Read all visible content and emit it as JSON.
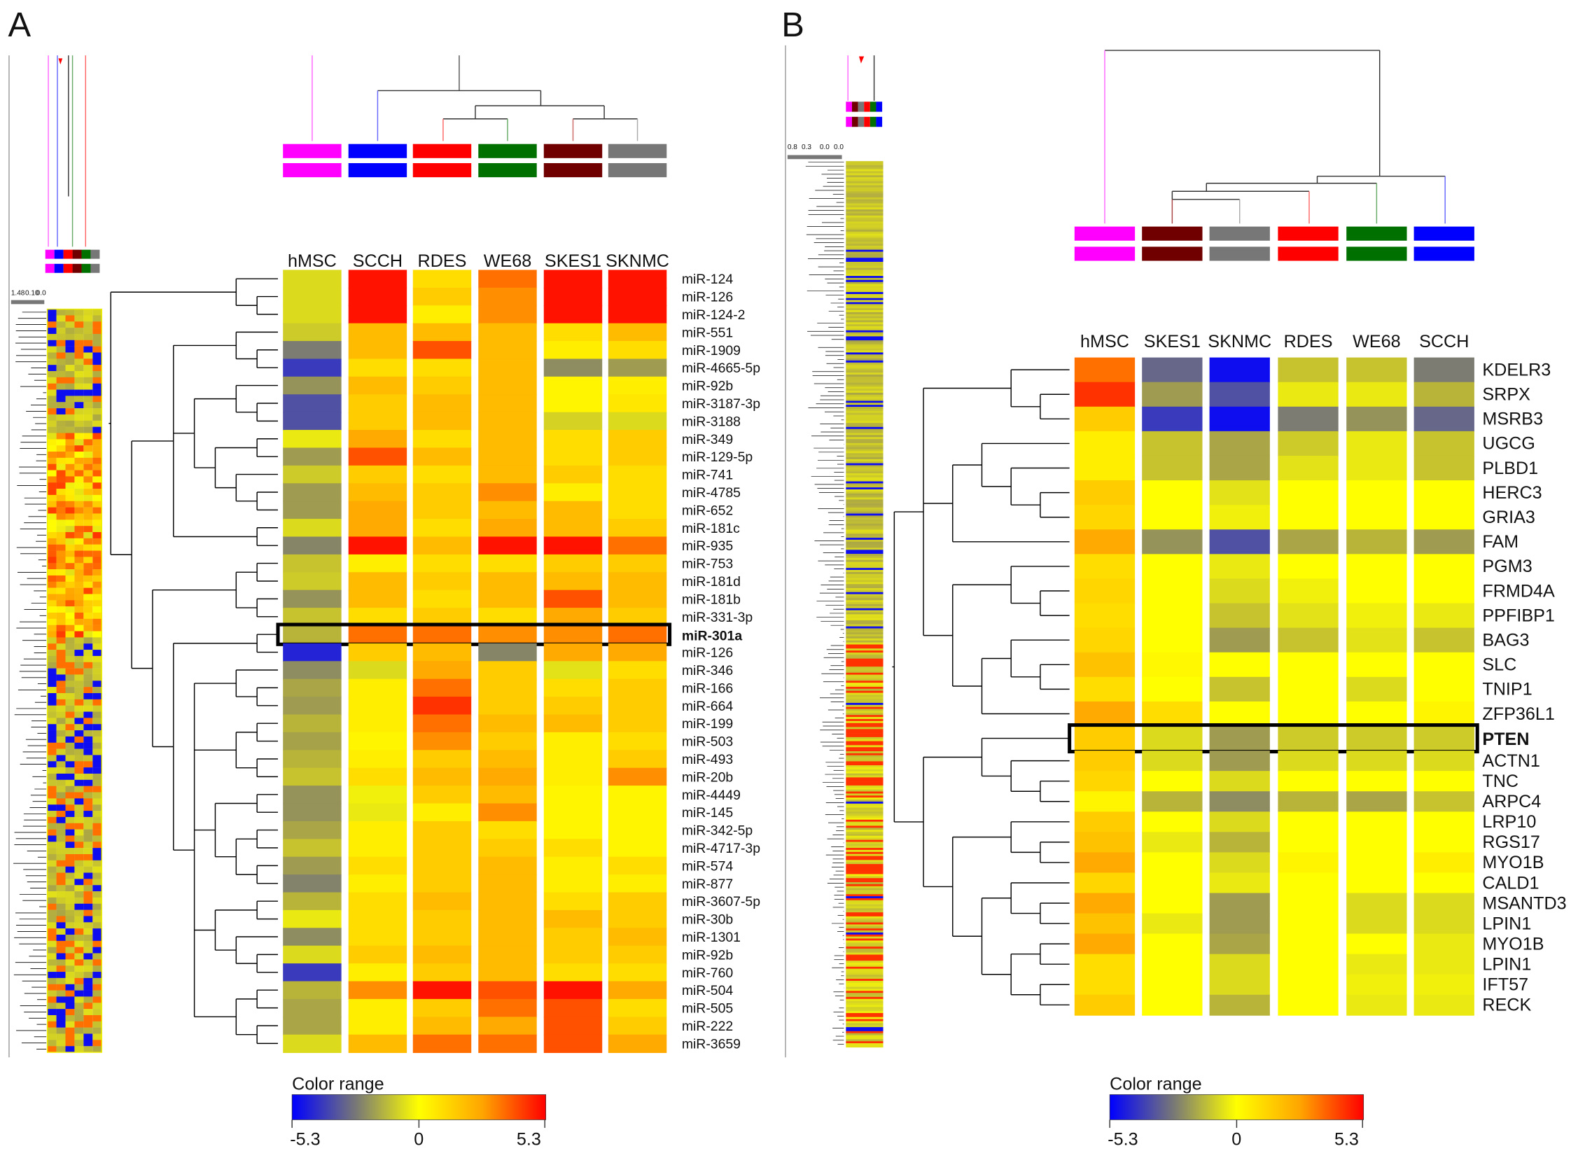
{
  "colors": {
    "magenta": "#ff00ff",
    "blue": "#0000ff",
    "red": "#ff0000",
    "green": "#007000",
    "darkred": "#700000",
    "gray": "#777777",
    "yellow": "#ffff00"
  },
  "legend": {
    "title": "Color range",
    "min_label": "-5.3",
    "mid_label": "0",
    "max_label": "5.3",
    "min": -5.3,
    "max": 5.3
  },
  "chart_data": [
    {
      "type": "heatmap",
      "panel": "A",
      "title": "",
      "mini_scale_labels": [
        "1.48",
        "0.10",
        "0.0"
      ],
      "columns": [
        "hMSC",
        "SCCH",
        "RDES",
        "WE68",
        "SKES1",
        "SKNMC"
      ],
      "column_group_colors": [
        "magenta",
        "blue",
        "red",
        "green",
        "darkred",
        "gray"
      ],
      "highlight_row": "miR-301a",
      "rows": [
        "miR-124",
        "miR-126",
        "miR-124-2",
        "miR-551",
        "miR-1909",
        "miR-4665-5p",
        "miR-92b",
        "miR-3187-3p",
        "miR-3188",
        "miR-349",
        "miR-129-5p",
        "miR-741",
        "miR-4785",
        "miR-652",
        "miR-181c",
        "miR-935",
        "miR-753",
        "miR-181d",
        "miR-181b",
        "miR-331-3p",
        "miR-301a",
        "miR-126",
        "miR-346",
        "miR-166",
        "miR-664",
        "miR-199",
        "miR-503",
        "miR-493",
        "miR-20b",
        "miR-4449",
        "miR-145",
        "miR-342-5p",
        "miR-4717-3p",
        "miR-574",
        "miR-877",
        "miR-3607-5p",
        "miR-30b",
        "miR-1301",
        "miR-92b",
        "miR-760",
        "miR-504",
        "miR-505",
        "miR-222",
        "miR-3659"
      ],
      "values": [
        [
          -0.5,
          5,
          1,
          3.5,
          5,
          5
        ],
        [
          -0.5,
          5,
          1.5,
          3,
          5,
          5
        ],
        [
          -0.5,
          5,
          0.5,
          3,
          5,
          5
        ],
        [
          -0.7,
          2,
          2,
          2,
          1,
          2
        ],
        [
          -2.5,
          2,
          4,
          2,
          0.5,
          1
        ],
        [
          -4,
          1,
          1,
          2,
          -2,
          -1.5
        ],
        [
          -1.8,
          2,
          1.5,
          2,
          0.3,
          0.5
        ],
        [
          -3.5,
          1.5,
          2,
          2,
          0.3,
          0.7
        ],
        [
          -3.5,
          1.5,
          2,
          2,
          -0.6,
          -0.5
        ],
        [
          -0.3,
          2.5,
          1,
          2,
          1,
          1.5
        ],
        [
          -1.5,
          4,
          2,
          2,
          1,
          1.5
        ],
        [
          -0.7,
          1.5,
          1,
          2,
          1.5,
          1
        ],
        [
          -1.5,
          2,
          1.5,
          3,
          0.5,
          1
        ],
        [
          -1.5,
          2.5,
          1.5,
          2,
          2,
          1
        ],
        [
          -0.5,
          2.5,
          1,
          2.5,
          2,
          1.5
        ],
        [
          -2.2,
          5,
          2,
          5,
          5,
          3.5
        ],
        [
          -0.8,
          0.5,
          1,
          1,
          1.5,
          1.5
        ],
        [
          -0.7,
          2,
          1.5,
          2,
          2,
          2
        ],
        [
          -1.8,
          2,
          1,
          2,
          4,
          2
        ],
        [
          -0.8,
          1,
          1.5,
          1,
          2.5,
          1.5
        ],
        [
          -1,
          3.5,
          3.5,
          3,
          3,
          3.5
        ],
        [
          -4.5,
          1.5,
          2,
          -2.2,
          2.5,
          2.5
        ],
        [
          -2,
          -0.5,
          2.5,
          1.5,
          -0.4,
          1
        ],
        [
          -1.2,
          0.5,
          3.5,
          1.5,
          1,
          1.5
        ],
        [
          -1.5,
          0.5,
          4.5,
          1.5,
          1.5,
          1.5
        ],
        [
          -1,
          0.5,
          3.5,
          2,
          2,
          1.5
        ],
        [
          -1.3,
          0.3,
          3,
          1.5,
          0.5,
          1
        ],
        [
          -1,
          0.5,
          1.5,
          2,
          0.5,
          1.5
        ],
        [
          -0.8,
          1,
          2,
          2.5,
          0.5,
          3
        ],
        [
          -1.8,
          -0.2,
          1.5,
          2,
          0.3,
          0.3
        ],
        [
          -1.8,
          -0.3,
          0.5,
          3,
          0.3,
          0.3
        ],
        [
          -1.2,
          0.5,
          1.5,
          1,
          0.3,
          0.3
        ],
        [
          -0.8,
          0.5,
          1.5,
          1.5,
          1,
          0.3
        ],
        [
          -1.5,
          1,
          1.5,
          2,
          0.5,
          1
        ],
        [
          -2.3,
          0.5,
          1.5,
          2,
          0.5,
          0.5
        ],
        [
          -1,
          1,
          2,
          2,
          1,
          1.5
        ],
        [
          -0.3,
          1,
          1.5,
          2,
          2,
          1.5
        ],
        [
          -2,
          1,
          1.5,
          2,
          1.5,
          2
        ],
        [
          -0.5,
          1.5,
          2,
          2,
          1.5,
          1.5
        ],
        [
          -4,
          0.5,
          1.5,
          2,
          1,
          1
        ],
        [
          -1,
          3,
          5,
          4,
          5,
          2.5
        ],
        [
          -1.2,
          0.5,
          1.5,
          3.5,
          4,
          1
        ],
        [
          -1.2,
          0.5,
          2,
          2.5,
          4,
          1.5
        ],
        [
          -0.5,
          2,
          3.5,
          3.5,
          4,
          2.5
        ]
      ],
      "zlim": [
        -5.3,
        5.3
      ]
    },
    {
      "type": "heatmap",
      "panel": "B",
      "title": "",
      "mini_scale_labels": [
        "0.8",
        "0.3",
        "0.0",
        "0.0"
      ],
      "columns": [
        "hMSC",
        "SKES1",
        "SKNMC",
        "RDES",
        "WE68",
        "SCCH"
      ],
      "column_group_colors": [
        "magenta",
        "darkred",
        "gray",
        "red",
        "green",
        "blue"
      ],
      "highlight_row": "PTEN",
      "rows": [
        "KDELR3",
        "SRPX",
        "MSRB3",
        "UGCG",
        "PLBD1",
        "HERC3",
        "GRIA3",
        "FAM",
        "PGM3",
        "FRMD4A",
        "PPFIBP1",
        "BAG3",
        "SLC",
        "TNIP1",
        "ZFP36L1",
        "PTEN",
        "ACTN1",
        "TNC",
        "ARPC4",
        "LRP10",
        "RGS17",
        "MYO1B",
        "CALD1",
        "MSANTD3",
        "LPIN1",
        "MYO1B",
        "LPIN1",
        "IFT57",
        "RECK"
      ],
      "values": [
        [
          3.5,
          -3,
          -5,
          -0.8,
          -0.8,
          -2.5
        ],
        [
          4.5,
          -1.5,
          -3.5,
          -0.3,
          -0.3,
          -1
        ],
        [
          1.5,
          -4,
          -5,
          -2.5,
          -1.8,
          -3
        ],
        [
          0.5,
          -0.8,
          -1.2,
          -0.7,
          -0.3,
          -0.8
        ],
        [
          0.5,
          -0.8,
          -1.2,
          -0.4,
          -0.3,
          -0.8
        ],
        [
          1.5,
          0,
          -0.4,
          0,
          0,
          0
        ],
        [
          1.2,
          0,
          -0.2,
          0,
          0,
          0
        ],
        [
          2.5,
          -1.8,
          -3.5,
          -1.2,
          -1,
          -1.5
        ],
        [
          1,
          0,
          -0.3,
          0,
          0,
          0
        ],
        [
          1.2,
          0,
          -0.5,
          -0.2,
          0,
          0
        ],
        [
          1,
          0,
          -0.8,
          -0.4,
          -0.2,
          -0.3
        ],
        [
          1.2,
          0,
          -1.5,
          -0.8,
          -0.4,
          -0.8
        ],
        [
          1.8,
          0.2,
          0,
          0,
          0,
          0
        ],
        [
          1,
          0,
          -0.8,
          0,
          -0.5,
          0
        ],
        [
          2.5,
          1,
          0,
          0,
          0,
          0.3
        ],
        [
          1.5,
          -0.5,
          -1.5,
          -0.7,
          -0.7,
          -0.7
        ],
        [
          1.5,
          -0.5,
          -1.5,
          -0.5,
          -0.5,
          -0.5
        ],
        [
          1.2,
          0,
          -0.5,
          0,
          0,
          0
        ],
        [
          0.3,
          -1,
          -2,
          -1,
          -1.2,
          -0.8
        ],
        [
          1.5,
          0,
          -0.5,
          0,
          0,
          0
        ],
        [
          1.8,
          -0.3,
          -1,
          0,
          0,
          0
        ],
        [
          2.5,
          0,
          -0.5,
          0.3,
          0,
          0.5
        ],
        [
          1.2,
          0,
          -0.3,
          0,
          0,
          0
        ],
        [
          2.5,
          0,
          -1.5,
          0,
          -0.5,
          -0.5
        ],
        [
          1.8,
          -0.3,
          -1.5,
          0,
          -0.5,
          -0.5
        ],
        [
          2.5,
          0,
          -1.2,
          0,
          0,
          -0.3
        ],
        [
          1,
          0,
          -0.5,
          0,
          -0.3,
          -0.3
        ],
        [
          1,
          0,
          -0.5,
          0,
          -0.2,
          -0.2
        ],
        [
          1.5,
          0,
          -1,
          0,
          -0.3,
          -0.3
        ]
      ],
      "zlim": [
        -5.3,
        5.3
      ]
    }
  ]
}
